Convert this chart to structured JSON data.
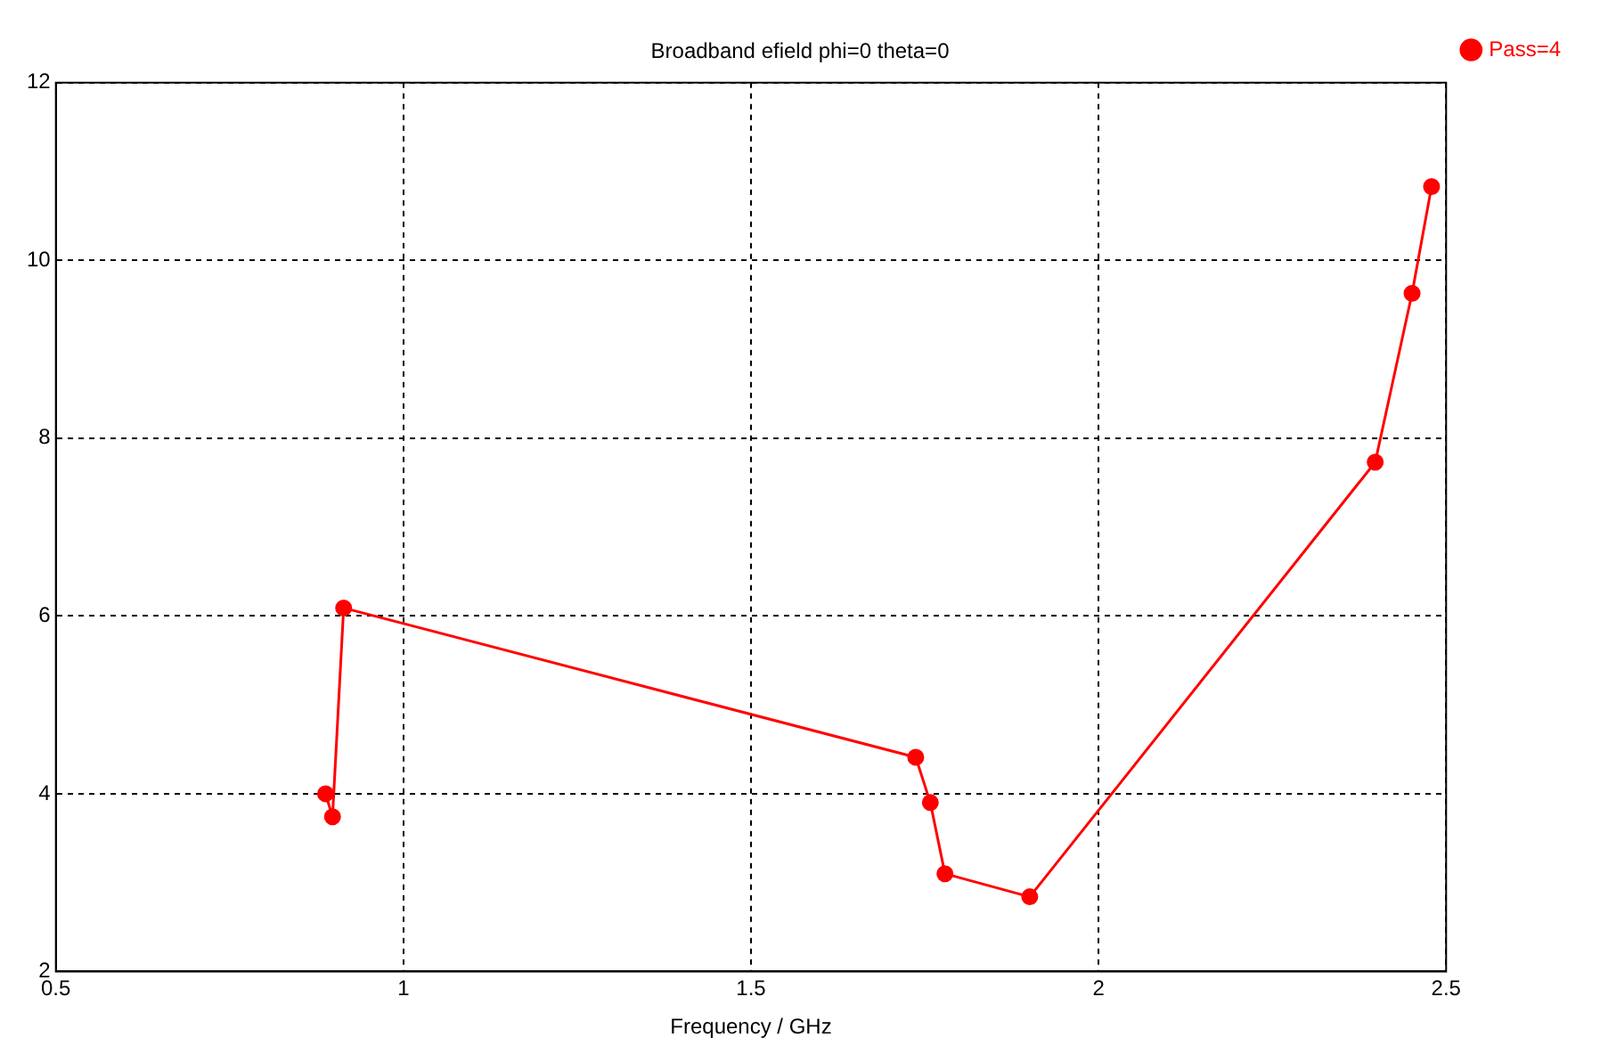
{
  "chart_data": {
    "type": "line",
    "title": "Broadband efield phi=0 theta=0",
    "xlabel": "Frequency / GHz",
    "series": [
      {
        "name": "Pass=4",
        "color": "#ff0000",
        "x": [
          0.888,
          0.898,
          0.914,
          1.737,
          1.758,
          1.779,
          1.901,
          2.398,
          2.451,
          2.479
        ],
        "values": [
          4.0,
          3.74,
          6.09,
          4.41,
          3.9,
          3.1,
          2.84,
          7.73,
          9.63,
          10.83
        ]
      }
    ],
    "xlim": [
      0.5,
      2.5
    ],
    "xticks": [
      0.5,
      1,
      1.5,
      2,
      2.5
    ],
    "ylim": [
      2,
      12
    ],
    "yticks": [
      2,
      4,
      6,
      8,
      10,
      12
    ],
    "grid": true,
    "legend": "top right",
    "marker": "circle",
    "line_style": "solid"
  }
}
